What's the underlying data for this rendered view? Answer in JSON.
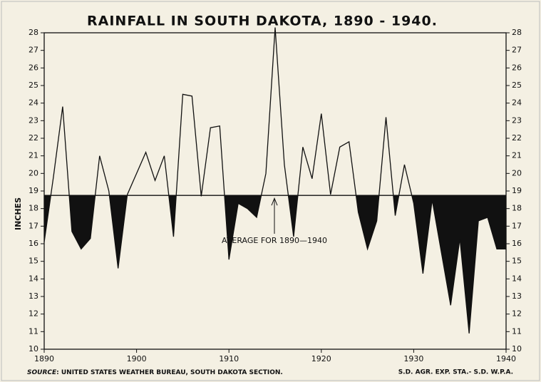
{
  "chart_data": {
    "type": "line",
    "title": "RAINFALL IN SOUTH DAKOTA, 1890 - 1940.",
    "y_label": "INCHES",
    "x": [
      1890,
      1891,
      1892,
      1893,
      1894,
      1895,
      1896,
      1897,
      1898,
      1899,
      1900,
      1901,
      1902,
      1903,
      1904,
      1905,
      1906,
      1907,
      1908,
      1909,
      1910,
      1911,
      1912,
      1913,
      1914,
      1915,
      1916,
      1917,
      1918,
      1919,
      1920,
      1921,
      1922,
      1923,
      1924,
      1925,
      1926,
      1927,
      1928,
      1929,
      1930,
      1931,
      1932,
      1933,
      1934,
      1935,
      1936,
      1937,
      1938,
      1939,
      1940
    ],
    "values": [
      16.1,
      19.8,
      23.8,
      16.7,
      15.7,
      16.3,
      21.0,
      19.0,
      14.6,
      18.8,
      20.0,
      21.2,
      19.6,
      21.0,
      16.4,
      24.5,
      24.4,
      18.7,
      22.6,
      22.7,
      15.1,
      18.3,
      18.0,
      17.5,
      20.0,
      28.3,
      20.5,
      16.4,
      21.5,
      19.7,
      23.4,
      18.8,
      21.5,
      21.8,
      17.8,
      15.7,
      17.3,
      23.2,
      17.6,
      20.5,
      18.3,
      14.3,
      18.5,
      15.5,
      12.5,
      16.3,
      10.9,
      17.3,
      17.5,
      15.7,
      15.7
    ],
    "average": 18.75,
    "average_label": "AVERAGE FOR 1890—1940",
    "color": "#111111",
    "below_fill": "#111111",
    "xlim": [
      1890,
      1940
    ],
    "xticks": [
      1890,
      1900,
      1910,
      1920,
      1930,
      1940
    ],
    "ylim": [
      10,
      28
    ],
    "yticks": [
      10,
      11,
      12,
      13,
      14,
      15,
      16,
      17,
      18,
      19,
      20,
      21,
      22,
      23,
      24,
      25,
      26,
      27,
      28
    ],
    "source_label": "SOURCE",
    "source_text": ": UNITED STATES WEATHER BUREAU, SOUTH DAKOTA SECTION.",
    "credit": "S.D. AGR. EXP. STA.- S.D. W.P.A."
  }
}
